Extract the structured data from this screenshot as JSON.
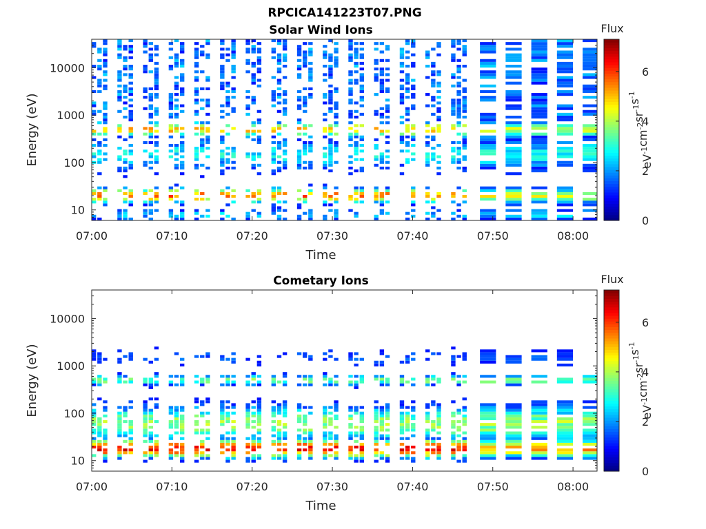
{
  "figure": {
    "title": "RPCICA141223T07.PNG"
  },
  "chart_data": [
    {
      "type": "heatmap",
      "title": "Solar Wind Ions",
      "xlabel": "Time",
      "ylabel": "Energy (eV)",
      "yscale": "log",
      "xlim": [
        "07:00",
        "08:03"
      ],
      "ylim": [
        6,
        40000
      ],
      "xticks": [
        "07:00",
        "07:10",
        "07:20",
        "07:30",
        "07:40",
        "07:50",
        "08:00"
      ],
      "yticks": [
        "10",
        "100",
        "1000",
        "10000"
      ],
      "colorbar": {
        "label": "Flux",
        "units": "eV-1cm-2sr-1s-1",
        "range": [
          0,
          7.3
        ],
        "ticks": [
          "0",
          "2",
          "4",
          "6"
        ],
        "colormap": "jet"
      },
      "pattern": "sweeps about every 3.2 min; bright flux near 20 eV and 500 eV; wide uniform blocks after 07:45",
      "seed": 11
    },
    {
      "type": "heatmap",
      "title": "Cometary Ions",
      "xlabel": "Time",
      "ylabel": "Energy (eV)",
      "yscale": "log",
      "xlim": [
        "07:00",
        "08:03"
      ],
      "ylim": [
        6,
        40000
      ],
      "xticks": [
        "07:00",
        "07:10",
        "07:20",
        "07:30",
        "07:40",
        "07:50",
        "08:00"
      ],
      "yticks": [
        "10",
        "100",
        "1000",
        "10000"
      ],
      "colorbar": {
        "label": "Flux",
        "units": "eV-1cm-2sr-1s-1",
        "range": [
          0,
          7.3
        ],
        "ticks": [
          "0",
          "2",
          "4",
          "6"
        ],
        "colormap": "jet"
      },
      "pattern": "strongest flux 10-30 eV; green 30-200 eV; band near 500 eV; sparse blue 1000-2000 eV",
      "seed": 29
    }
  ]
}
